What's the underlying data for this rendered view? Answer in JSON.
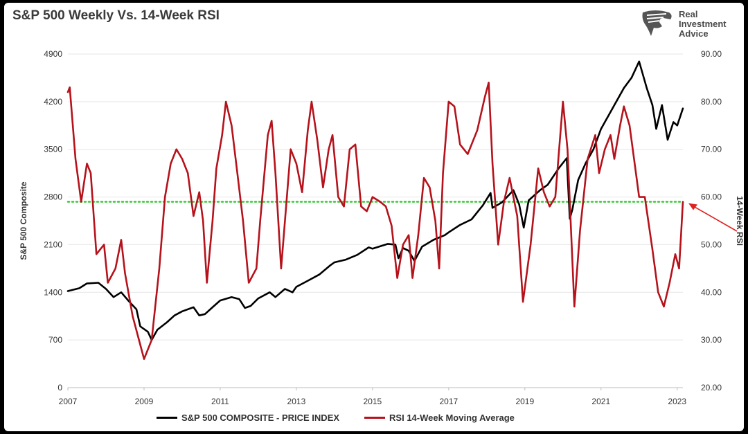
{
  "title": "S&P 500 Weekly Vs. 14-Week RSI",
  "logo": {
    "lines": [
      "Real",
      "Investment",
      "Advice"
    ],
    "icon": "eagle-head-icon"
  },
  "colors": {
    "spx": "#000000",
    "rsi": "#b5121b",
    "threshold": "#33cc33",
    "grid": "#e6e6e6",
    "arrow": "#e0201e",
    "text": "#333333"
  },
  "chart_data": {
    "type": "line",
    "title": "S&P 500 Weekly Vs. 14-Week RSI",
    "xlabel": "",
    "ylabel": "S&P 500 Composite",
    "y2label": "14-Week RSI",
    "x_ticks": [
      "2007",
      "2009",
      "2011",
      "2013",
      "2015",
      "2017",
      "2019",
      "2021",
      "2023"
    ],
    "x_range": [
      2007.0,
      2023.15
    ],
    "ylim": [
      0,
      4900
    ],
    "y_ticks": [
      "0",
      "700",
      "1400",
      "2100",
      "2800",
      "3500",
      "4200",
      "4900"
    ],
    "y2lim": [
      20,
      90
    ],
    "y2_ticks": [
      "20.00",
      "30.00",
      "40.00",
      "50.00",
      "60.00",
      "70.00",
      "80.00",
      "90.00"
    ],
    "grid": "horizontal",
    "legend_position": "bottom",
    "reference_line": {
      "axis": "y2",
      "value": 59
    },
    "series": [
      {
        "name": "S&P 500 COMPOSITE - PRICE INDEX",
        "axis": "y",
        "color": "#000000",
        "points": [
          [
            2007.0,
            1418
          ],
          [
            2007.3,
            1460
          ],
          [
            2007.5,
            1530
          ],
          [
            2007.8,
            1540
          ],
          [
            2008.0,
            1450
          ],
          [
            2008.2,
            1330
          ],
          [
            2008.4,
            1400
          ],
          [
            2008.6,
            1270
          ],
          [
            2008.8,
            1150
          ],
          [
            2008.9,
            900
          ],
          [
            2009.1,
            820
          ],
          [
            2009.2,
            700
          ],
          [
            2009.35,
            850
          ],
          [
            2009.6,
            960
          ],
          [
            2009.8,
            1060
          ],
          [
            2010.0,
            1120
          ],
          [
            2010.3,
            1180
          ],
          [
            2010.45,
            1060
          ],
          [
            2010.6,
            1080
          ],
          [
            2010.8,
            1180
          ],
          [
            2011.0,
            1280
          ],
          [
            2011.3,
            1330
          ],
          [
            2011.5,
            1300
          ],
          [
            2011.65,
            1170
          ],
          [
            2011.8,
            1200
          ],
          [
            2012.0,
            1310
          ],
          [
            2012.3,
            1400
          ],
          [
            2012.45,
            1330
          ],
          [
            2012.7,
            1450
          ],
          [
            2012.9,
            1400
          ],
          [
            2013.0,
            1480
          ],
          [
            2013.3,
            1570
          ],
          [
            2013.6,
            1660
          ],
          [
            2013.9,
            1800
          ],
          [
            2014.0,
            1840
          ],
          [
            2014.3,
            1880
          ],
          [
            2014.6,
            1950
          ],
          [
            2014.9,
            2060
          ],
          [
            2015.0,
            2040
          ],
          [
            2015.4,
            2110
          ],
          [
            2015.6,
            2100
          ],
          [
            2015.68,
            1900
          ],
          [
            2015.8,
            2050
          ],
          [
            2015.95,
            2010
          ],
          [
            2016.1,
            1860
          ],
          [
            2016.3,
            2070
          ],
          [
            2016.6,
            2170
          ],
          [
            2016.9,
            2240
          ],
          [
            2017.0,
            2280
          ],
          [
            2017.3,
            2390
          ],
          [
            2017.6,
            2470
          ],
          [
            2017.9,
            2680
          ],
          [
            2018.1,
            2860
          ],
          [
            2018.15,
            2640
          ],
          [
            2018.4,
            2720
          ],
          [
            2018.7,
            2900
          ],
          [
            2018.85,
            2690
          ],
          [
            2018.97,
            2350
          ],
          [
            2019.1,
            2750
          ],
          [
            2019.4,
            2900
          ],
          [
            2019.6,
            2980
          ],
          [
            2019.9,
            3230
          ],
          [
            2020.1,
            3370
          ],
          [
            2020.18,
            2480
          ],
          [
            2020.25,
            2620
          ],
          [
            2020.4,
            3050
          ],
          [
            2020.6,
            3300
          ],
          [
            2020.8,
            3500
          ],
          [
            2021.0,
            3800
          ],
          [
            2021.3,
            4100
          ],
          [
            2021.6,
            4400
          ],
          [
            2021.8,
            4550
          ],
          [
            2022.0,
            4790
          ],
          [
            2022.2,
            4400
          ],
          [
            2022.35,
            4150
          ],
          [
            2022.45,
            3800
          ],
          [
            2022.6,
            4150
          ],
          [
            2022.75,
            3640
          ],
          [
            2022.9,
            3900
          ],
          [
            2023.0,
            3850
          ],
          [
            2023.15,
            4100
          ]
        ]
      },
      {
        "name": "RSI 14-Week Moving Average",
        "axis": "y2",
        "color": "#b5121b",
        "points": [
          [
            2007.0,
            82
          ],
          [
            2007.05,
            83
          ],
          [
            2007.2,
            68
          ],
          [
            2007.35,
            59
          ],
          [
            2007.5,
            67
          ],
          [
            2007.6,
            65
          ],
          [
            2007.75,
            48
          ],
          [
            2007.95,
            50
          ],
          [
            2008.05,
            42
          ],
          [
            2008.25,
            45
          ],
          [
            2008.4,
            51
          ],
          [
            2008.5,
            44
          ],
          [
            2008.7,
            35
          ],
          [
            2008.9,
            29
          ],
          [
            2009.0,
            26
          ],
          [
            2009.2,
            30
          ],
          [
            2009.4,
            45
          ],
          [
            2009.55,
            60
          ],
          [
            2009.7,
            67
          ],
          [
            2009.85,
            70
          ],
          [
            2010.0,
            68
          ],
          [
            2010.15,
            65
          ],
          [
            2010.3,
            56
          ],
          [
            2010.45,
            61
          ],
          [
            2010.55,
            55
          ],
          [
            2010.65,
            42
          ],
          [
            2010.8,
            55
          ],
          [
            2010.9,
            66
          ],
          [
            2011.05,
            73
          ],
          [
            2011.15,
            80
          ],
          [
            2011.3,
            75
          ],
          [
            2011.45,
            65
          ],
          [
            2011.6,
            55
          ],
          [
            2011.75,
            42
          ],
          [
            2011.95,
            45
          ],
          [
            2012.05,
            55
          ],
          [
            2012.25,
            73
          ],
          [
            2012.35,
            76
          ],
          [
            2012.45,
            65
          ],
          [
            2012.6,
            45
          ],
          [
            2012.75,
            60
          ],
          [
            2012.85,
            70
          ],
          [
            2013.0,
            67
          ],
          [
            2013.15,
            61
          ],
          [
            2013.3,
            74
          ],
          [
            2013.4,
            80
          ],
          [
            2013.55,
            72
          ],
          [
            2013.7,
            62
          ],
          [
            2013.85,
            70
          ],
          [
            2013.95,
            73
          ],
          [
            2014.1,
            60
          ],
          [
            2014.25,
            58
          ],
          [
            2014.4,
            70
          ],
          [
            2014.55,
            71
          ],
          [
            2014.7,
            58
          ],
          [
            2014.85,
            57
          ],
          [
            2015.0,
            60
          ],
          [
            2015.2,
            59
          ],
          [
            2015.35,
            58
          ],
          [
            2015.5,
            54
          ],
          [
            2015.65,
            43
          ],
          [
            2015.8,
            50
          ],
          [
            2015.95,
            52
          ],
          [
            2016.05,
            43
          ],
          [
            2016.2,
            52
          ],
          [
            2016.35,
            64
          ],
          [
            2016.5,
            62
          ],
          [
            2016.65,
            55
          ],
          [
            2016.75,
            45
          ],
          [
            2016.85,
            65
          ],
          [
            2017.0,
            80
          ],
          [
            2017.15,
            79
          ],
          [
            2017.3,
            71
          ],
          [
            2017.5,
            69
          ],
          [
            2017.75,
            74
          ],
          [
            2017.95,
            81
          ],
          [
            2018.05,
            84
          ],
          [
            2018.15,
            67
          ],
          [
            2018.3,
            50
          ],
          [
            2018.45,
            59
          ],
          [
            2018.6,
            64
          ],
          [
            2018.8,
            56
          ],
          [
            2018.95,
            38
          ],
          [
            2019.15,
            50
          ],
          [
            2019.35,
            66
          ],
          [
            2019.5,
            61
          ],
          [
            2019.65,
            58
          ],
          [
            2019.8,
            60
          ],
          [
            2020.0,
            80
          ],
          [
            2020.12,
            70
          ],
          [
            2020.3,
            37
          ],
          [
            2020.45,
            53
          ],
          [
            2020.65,
            68
          ],
          [
            2020.85,
            73
          ],
          [
            2020.95,
            65
          ],
          [
            2021.1,
            70
          ],
          [
            2021.25,
            73
          ],
          [
            2021.35,
            68
          ],
          [
            2021.5,
            75
          ],
          [
            2021.6,
            79
          ],
          [
            2021.75,
            75
          ],
          [
            2021.9,
            66
          ],
          [
            2022.0,
            60
          ],
          [
            2022.15,
            60
          ],
          [
            2022.35,
            49
          ],
          [
            2022.5,
            40
          ],
          [
            2022.65,
            37
          ],
          [
            2022.8,
            42
          ],
          [
            2022.95,
            48
          ],
          [
            2023.05,
            45
          ],
          [
            2023.1,
            52
          ],
          [
            2023.15,
            59
          ]
        ]
      }
    ]
  }
}
